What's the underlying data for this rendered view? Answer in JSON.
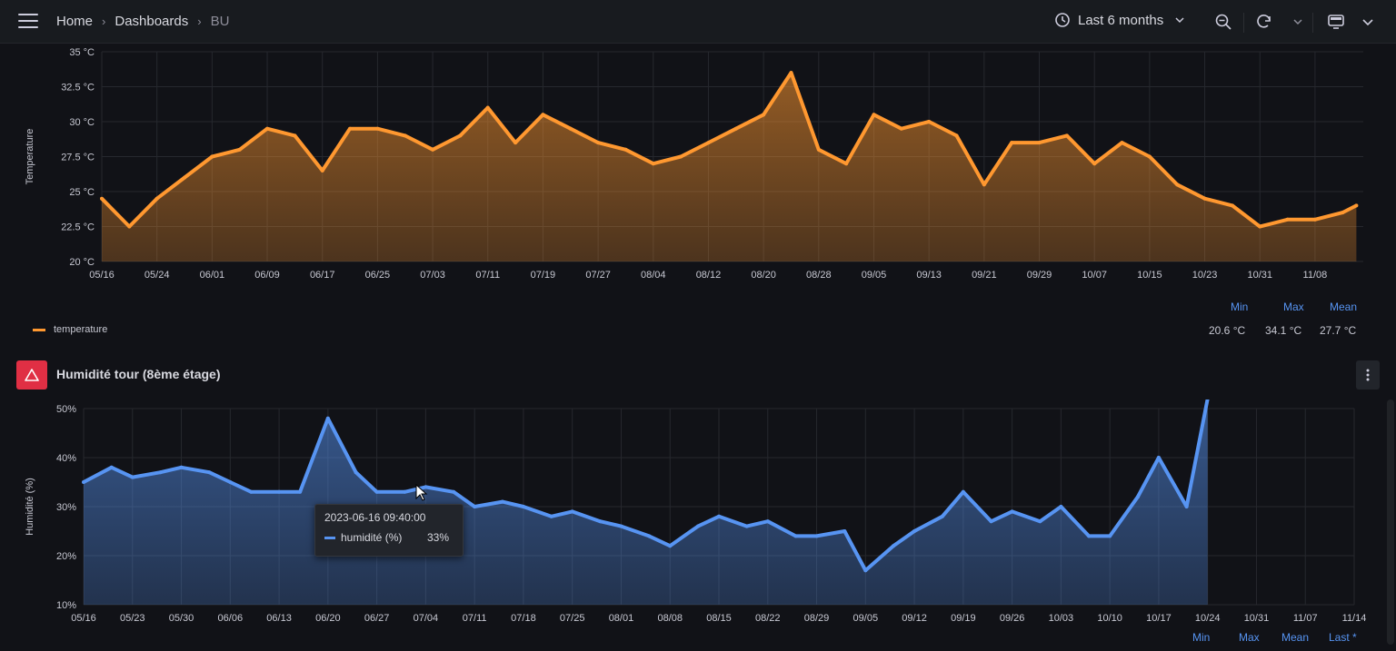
{
  "topbar": {
    "breadcrumb": [
      "Home",
      "Dashboards",
      "BU"
    ],
    "time_range": "Last 6 months",
    "icons": [
      "menu-icon",
      "clock-icon",
      "zoom-out-icon",
      "refresh-icon",
      "chevron-down-icon",
      "tv-icon",
      "chevron-down-icon"
    ]
  },
  "panel1": {
    "y_label": "Temperature",
    "legend_series": "temperature",
    "legend_headers": [
      "Min",
      "Max",
      "Mean"
    ],
    "legend_values": [
      "20.6 °C",
      "34.1 °C",
      "27.7 °C"
    ],
    "series_color": "#ff9830"
  },
  "panel2": {
    "title": "Humidité tour (8ème étage)",
    "y_label": "Humidité (%)",
    "legend_headers": [
      "Min",
      "Max",
      "Mean",
      "Last *"
    ],
    "series_color": "#5794f2",
    "tooltip": {
      "timestamp": "2023-06-16 09:40:00",
      "series": "humidité (%)",
      "value": "33%"
    }
  },
  "chart_data": [
    {
      "type": "area",
      "title": "",
      "ylabel": "Temperature",
      "ylim": [
        20,
        35
      ],
      "y_ticks": [
        "20 °C",
        "22.5 °C",
        "25 °C",
        "27.5 °C",
        "30 °C",
        "32.5 °C",
        "35 °C"
      ],
      "x_ticks": [
        "05/16",
        "05/24",
        "06/01",
        "06/09",
        "06/17",
        "06/25",
        "07/03",
        "07/11",
        "07/19",
        "07/27",
        "08/04",
        "08/12",
        "08/20",
        "08/28",
        "09/05",
        "09/13",
        "09/21",
        "09/29",
        "10/07",
        "10/15",
        "10/23",
        "10/31",
        "11/08"
      ],
      "grid": true,
      "series": [
        {
          "name": "temperature",
          "x": [
            "05/16",
            "05/20",
            "05/24",
            "05/28",
            "06/01",
            "06/05",
            "06/09",
            "06/13",
            "06/17",
            "06/21",
            "06/25",
            "06/29",
            "07/03",
            "07/07",
            "07/11",
            "07/15",
            "07/19",
            "07/23",
            "07/27",
            "07/31",
            "08/04",
            "08/08",
            "08/12",
            "08/16",
            "08/20",
            "08/24",
            "08/28",
            "09/01",
            "09/05",
            "09/09",
            "09/13",
            "09/17",
            "09/21",
            "09/25",
            "09/29",
            "10/03",
            "10/07",
            "10/11",
            "10/15",
            "10/19",
            "10/23",
            "10/27",
            "10/31",
            "11/04",
            "11/08",
            "11/12",
            "11/14"
          ],
          "values": [
            24.5,
            22.5,
            24.5,
            26.0,
            27.5,
            28.0,
            29.5,
            29.0,
            26.5,
            29.5,
            29.5,
            29.0,
            28.0,
            29.0,
            31.0,
            28.5,
            30.5,
            29.5,
            28.5,
            28.0,
            27.0,
            27.5,
            28.5,
            29.5,
            30.5,
            33.5,
            28.0,
            27.0,
            30.5,
            29.5,
            30.0,
            29.0,
            25.5,
            28.5,
            28.5,
            29.0,
            27.0,
            28.5,
            27.5,
            25.5,
            24.5,
            24.0,
            22.5,
            23.0,
            23.0,
            23.5,
            24.0
          ]
        }
      ]
    },
    {
      "type": "area",
      "title": "Humidité tour (8ème étage)",
      "ylabel": "Humidité (%)",
      "ylim": [
        10,
        50
      ],
      "y_ticks": [
        "10%",
        "20%",
        "30%",
        "40%",
        "50%"
      ],
      "x_ticks": [
        "05/16",
        "05/23",
        "05/30",
        "06/06",
        "06/13",
        "06/20",
        "06/27",
        "07/04",
        "07/11",
        "07/18",
        "07/25",
        "08/01",
        "08/08",
        "08/15",
        "08/22",
        "08/29",
        "09/05",
        "09/12",
        "09/19",
        "09/26",
        "10/03",
        "10/10",
        "10/17",
        "10/24",
        "10/31",
        "11/07",
        "11/14"
      ],
      "grid": true,
      "series": [
        {
          "name": "humidité (%)",
          "x": [
            "05/16",
            "05/20",
            "05/23",
            "05/27",
            "05/30",
            "06/03",
            "06/06",
            "06/09",
            "06/13",
            "06/16",
            "06/20",
            "06/24",
            "06/27",
            "07/01",
            "07/04",
            "07/08",
            "07/11",
            "07/15",
            "07/18",
            "07/22",
            "07/25",
            "07/29",
            "08/01",
            "08/05",
            "08/08",
            "08/12",
            "08/15",
            "08/19",
            "08/22",
            "08/26",
            "08/29",
            "09/02",
            "09/05",
            "09/09",
            "09/12",
            "09/16",
            "09/19",
            "09/23",
            "09/26",
            "09/30",
            "10/03",
            "10/07",
            "10/10",
            "10/14",
            "10/17",
            "10/21",
            "10/24"
          ],
          "values": [
            35,
            38,
            36,
            37,
            38,
            37,
            35,
            33,
            33,
            33,
            48,
            37,
            33,
            33,
            34,
            33,
            30,
            31,
            30,
            28,
            29,
            27,
            26,
            24,
            22,
            26,
            28,
            26,
            27,
            24,
            24,
            25,
            17,
            22,
            25,
            28,
            33,
            27,
            29,
            27,
            30,
            24,
            24,
            32,
            40,
            30,
            52
          ]
        }
      ]
    }
  ]
}
